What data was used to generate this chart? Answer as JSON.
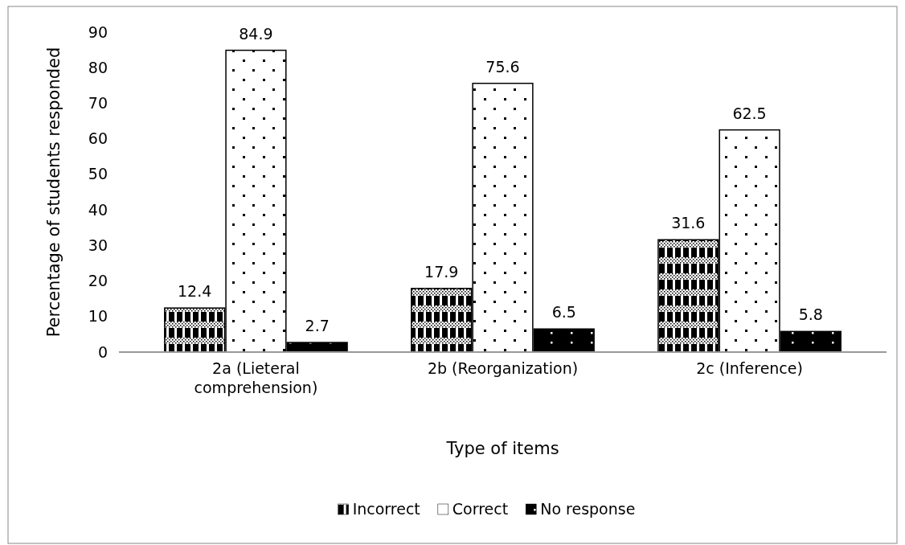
{
  "chart_data": {
    "type": "bar",
    "xlabel": "Type of items",
    "ylabel": "Percentage of students responded",
    "categories": [
      "2a (Lieteral comprehension)",
      "2b (Reorganization)",
      "2c (Inference)"
    ],
    "series": [
      {
        "name": "Incorrect",
        "color": "#000000",
        "values": [
          12.4,
          17.9,
          31.6
        ]
      },
      {
        "name": "Correct",
        "color": "#000000",
        "values": [
          84.9,
          75.6,
          62.5
        ]
      },
      {
        "name": "No response",
        "color": "#000000",
        "values": [
          2.7,
          6.5,
          5.8
        ]
      }
    ],
    "ylim": [
      0,
      90
    ],
    "yticks": [
      0,
      10,
      20,
      30,
      40,
      50,
      60,
      70,
      80,
      90
    ],
    "grid": false,
    "legend": "bottom",
    "data_labels": true
  }
}
